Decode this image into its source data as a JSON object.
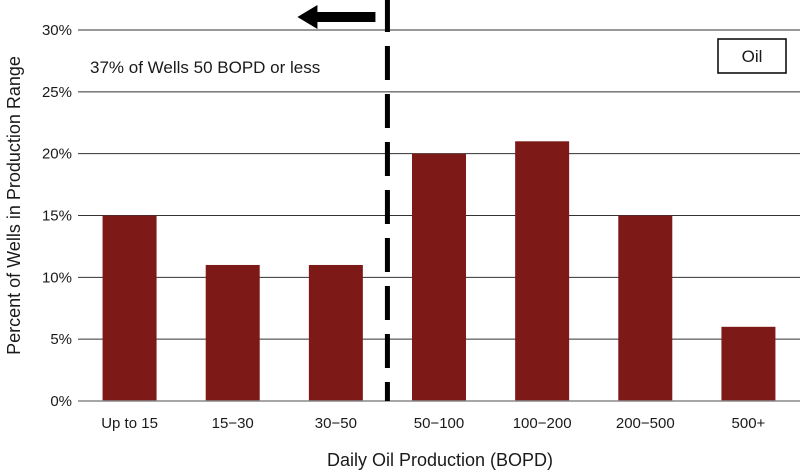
{
  "chart_data": {
    "type": "bar",
    "title": "",
    "xlabel": "Daily Oil Production (BOPD)",
    "ylabel": "Percent of Wells in Production Range",
    "categories": [
      "Up to 15",
      "15−30",
      "30−50",
      "50−100",
      "100−200",
      "200−500",
      "500+"
    ],
    "series": [
      {
        "name": "Oil",
        "values": [
          15,
          11,
          11,
          20,
          21,
          15,
          6
        ],
        "color": "#7d1a18"
      }
    ],
    "ylim": [
      0,
      30
    ],
    "yticks": [
      "0%",
      "5%",
      "10%",
      "15%",
      "20%",
      "25%",
      "30%"
    ],
    "grid": true,
    "legend": {
      "position": "top-right",
      "label": "Oil"
    },
    "annotation": {
      "text": "37% of Wells 50 BOPD or less",
      "threshold_between": [
        "30−50",
        "50−100"
      ],
      "arrow_direction": "left"
    }
  }
}
